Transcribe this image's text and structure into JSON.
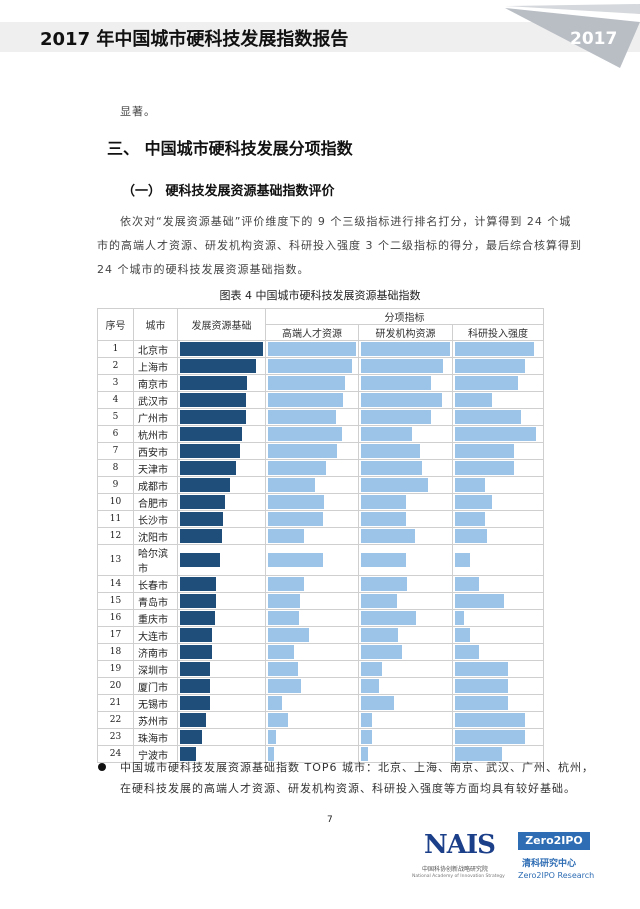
{
  "header": {
    "title": "2017 年中国城市硬科技发展指数报告",
    "year": "2017"
  },
  "prev_text": "显著。",
  "section_heading": "三、 中国城市硬科技发展分项指数",
  "subsection_heading": "（一）  硬科技发展资源基础指数评价",
  "paragraph": [
    "依次对“发展资源基础”评价维度下的 9 个三级指标进行排名打分，计算得到 24 个城",
    "市的高端人才资源、研发机构资源、科研投入强度 3 个二级指标的得分，最后综合核算得到",
    "24 个城市的硬科技发展资源基础指数。"
  ],
  "caption": "图表 4    中国城市硬科技发展资源基础指数",
  "table": {
    "headers": {
      "seq": "序号",
      "city": "城市",
      "main": "发展资源基础",
      "group": "分项指标",
      "talent": "高端人才资源",
      "inst": "研发机构资源",
      "intensity": "科研投入强度"
    }
  },
  "colors": {
    "main": "#1f4e7a",
    "sub": "#9cc3e8"
  },
  "chart_data": {
    "type": "table",
    "note": "relative bar lengths, 100 = longest in column",
    "rows": [
      [
        "1",
        "北京市",
        100,
        100,
        100,
        97
      ],
      [
        "2",
        "上海市",
        92,
        95,
        92,
        86
      ],
      [
        "3",
        "南京市",
        81,
        87,
        79,
        78
      ],
      [
        "4",
        "武汉市",
        80,
        85,
        91,
        46
      ],
      [
        "5",
        "广州市",
        79,
        77,
        79,
        81
      ],
      [
        "6",
        "杭州市",
        75,
        84,
        57,
        100
      ],
      [
        "7",
        "西安市",
        72,
        78,
        66,
        73
      ],
      [
        "8",
        "天津市",
        68,
        66,
        68,
        73
      ],
      [
        "9",
        "成都市",
        60,
        53,
        75,
        37
      ],
      [
        "10",
        "合肥市",
        54,
        64,
        50,
        46
      ],
      [
        "11",
        "长沙市",
        52,
        62,
        50,
        37
      ],
      [
        "12",
        "沈阳市",
        50,
        41,
        61,
        39
      ],
      [
        "13",
        "哈尔滨市",
        48,
        62,
        51,
        18
      ],
      [
        "14",
        "长春市",
        43,
        41,
        52,
        30
      ],
      [
        "15",
        "青岛市",
        43,
        36,
        40,
        60
      ],
      [
        "16",
        "重庆市",
        42,
        35,
        62,
        11
      ],
      [
        "17",
        "大连市",
        39,
        46,
        41,
        18
      ],
      [
        "18",
        "济南市",
        38,
        30,
        46,
        30
      ],
      [
        "19",
        "深圳市",
        36,
        34,
        24,
        65
      ],
      [
        "20",
        "厦门市",
        36,
        38,
        20,
        65
      ],
      [
        "21",
        "无锡市",
        36,
        16,
        37,
        65
      ],
      [
        "22",
        "苏州市",
        31,
        23,
        12,
        86
      ],
      [
        "23",
        "珠海市",
        26,
        9,
        12,
        86
      ],
      [
        "24",
        "宁波市",
        19,
        7,
        8,
        58
      ]
    ]
  },
  "bullet": [
    "中国城市硬科技发展资源基础指数 TOP6 城市：北京、上海、南京、武汉、广州、杭州，",
    "在硬科技发展的高端人才资源、研发机构资源、科研投入强度等方面均具有较好基础。"
  ],
  "page_number": "7",
  "logos": {
    "nais": "NAIS",
    "nais_cn": "中国科协创新战略研究院",
    "nais_en": "National Academy of Innovation Strategy",
    "zero": "Zero2IPO",
    "zero_cn": "清科研究中心",
    "zero_en": "Zero2IPO Research"
  }
}
